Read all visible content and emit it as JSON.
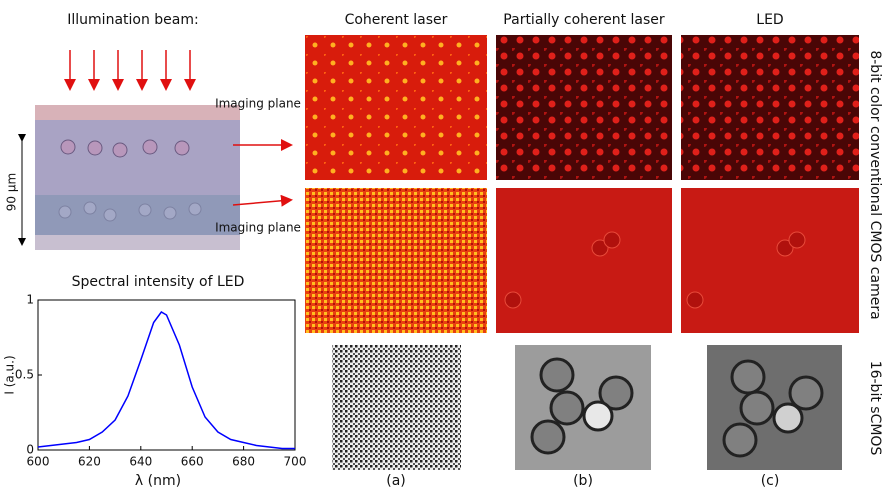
{
  "figure": {
    "illumination_label": "Illumination beam:",
    "imaging_plane_labels": [
      "Imaging plane",
      "Imaging plane"
    ],
    "thickness_label": "90 μm",
    "columns": [
      "Coherent laser",
      "Partially coherent laser",
      "LED"
    ],
    "row_labels": [
      "8-bit color conventional CMOS camera",
      "16-bit sCMOS"
    ],
    "panel_labels": [
      "(a)",
      "(b)",
      "(c)"
    ]
  },
  "chart_data": {
    "type": "line",
    "title": "Spectral intensity of LED",
    "xlabel": "λ (nm)",
    "ylabel": "I (a.u.)",
    "x": [
      600,
      605,
      610,
      615,
      620,
      625,
      630,
      635,
      640,
      645,
      648,
      650,
      655,
      660,
      665,
      670,
      675,
      680,
      685,
      690,
      695,
      700
    ],
    "values": [
      0.02,
      0.03,
      0.04,
      0.05,
      0.07,
      0.12,
      0.2,
      0.36,
      0.6,
      0.85,
      0.92,
      0.9,
      0.7,
      0.42,
      0.22,
      0.12,
      0.07,
      0.05,
      0.03,
      0.02,
      0.01,
      0.01
    ],
    "color": "#0000ff",
    "xlim": [
      600,
      700
    ],
    "xticks": [
      600,
      620,
      640,
      660,
      680,
      700
    ],
    "ylim": [
      0,
      1
    ],
    "yticks": [
      0,
      0.5,
      1
    ]
  }
}
